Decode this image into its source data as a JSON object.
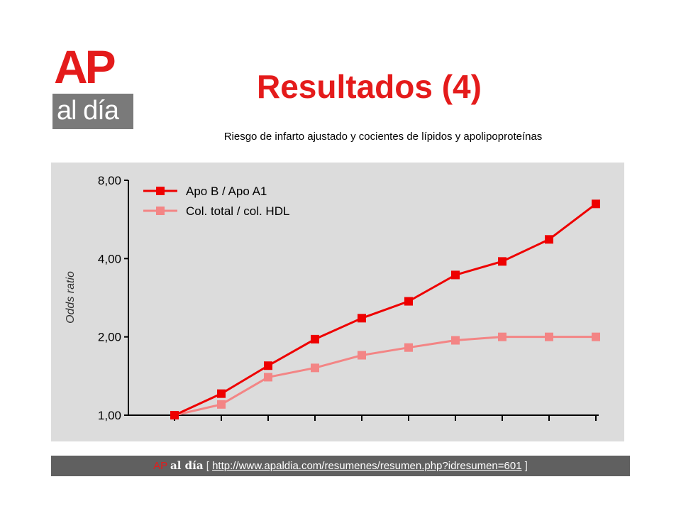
{
  "colors": {
    "brand_red": "#e41b1b",
    "series_dark": "#ee0000",
    "series_light": "#f38585",
    "panel_bg": "#dcdcdc",
    "footer_bg": "#606060"
  },
  "logo": {
    "ap": "AP",
    "aldia": "al día"
  },
  "header": {
    "title": "Resultados (4)",
    "subtitle": "Riesgo de infarto ajustado y cocientes de lípidos y apolipoproteínas"
  },
  "chart_data": {
    "type": "line",
    "title": "",
    "xlabel": "",
    "ylabel": "Odds ratio",
    "y_scale": "log2",
    "ylim": [
      1.0,
      8.0
    ],
    "y_ticks": [
      "1,00",
      "2,00",
      "4,00",
      "8,00"
    ],
    "x_tick_count": 10,
    "grid": false,
    "legend_position": "top-left",
    "series": [
      {
        "name": "Apo B / Apo A1",
        "color": "#ee0000",
        "x": [
          1,
          2,
          3,
          4,
          5,
          6,
          7,
          8,
          9,
          10
        ],
        "y": [
          1.0,
          1.21,
          1.55,
          1.96,
          2.36,
          2.74,
          3.46,
          3.9,
          4.74,
          6.49
        ]
      },
      {
        "name": "Col. total / col. HDL",
        "color": "#f38585",
        "x": [
          1,
          2,
          3,
          4,
          5,
          6,
          7,
          8,
          9,
          10
        ],
        "y": [
          1.0,
          1.1,
          1.4,
          1.52,
          1.7,
          1.82,
          1.94,
          2.0,
          2.0,
          2.0
        ]
      }
    ]
  },
  "footer": {
    "brand_ap": "AP",
    "brand_aldia": "al día",
    "bracket_open": "[",
    "bracket_close": "]",
    "url": "http://www.apaldia.com/resumenes/resumen.php?idresumen=601"
  }
}
